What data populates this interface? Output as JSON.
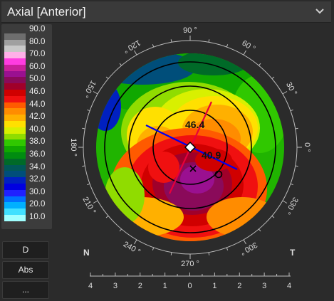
{
  "header": {
    "title": "Axial [Anterior]",
    "dropdown_icon": "chevron-down-icon"
  },
  "legend": {
    "items": [
      {
        "value": "90.0",
        "color": "#3c3c3c"
      },
      {
        "value": "",
        "color": "#6e6e6e"
      },
      {
        "value": "80.0",
        "color": "#a0a0a0"
      },
      {
        "value": "",
        "color": "#c8c8c8"
      },
      {
        "value": "70.0",
        "color": "#ffb0e8"
      },
      {
        "value": "",
        "color": "#ff3ce0"
      },
      {
        "value": "60.0",
        "color": "#c8209a"
      },
      {
        "value": "",
        "color": "#9a1090"
      },
      {
        "value": "50.0",
        "color": "#8a0a5a"
      },
      {
        "value": "",
        "color": "#a0002a"
      },
      {
        "value": "46.0",
        "color": "#d00000"
      },
      {
        "value": "",
        "color": "#f01010"
      },
      {
        "value": "44.0",
        "color": "#ff5a00"
      },
      {
        "value": "",
        "color": "#ff8c00"
      },
      {
        "value": "42.0",
        "color": "#ffb000"
      },
      {
        "value": "",
        "color": "#ffe000"
      },
      {
        "value": "40.0",
        "color": "#d8f000"
      },
      {
        "value": "",
        "color": "#90dc00"
      },
      {
        "value": "38.0",
        "color": "#30c800"
      },
      {
        "value": "",
        "color": "#10a800"
      },
      {
        "value": "36.0",
        "color": "#008c10"
      },
      {
        "value": "",
        "color": "#006a28"
      },
      {
        "value": "34.0",
        "color": "#005858"
      },
      {
        "value": "",
        "color": "#004e7a"
      },
      {
        "value": "32.0",
        "color": "#0020c0"
      },
      {
        "value": "",
        "color": "#0000e0"
      },
      {
        "value": "30.0",
        "color": "#2020ff"
      },
      {
        "value": "",
        "color": "#0070ff"
      },
      {
        "value": "20.0",
        "color": "#00b0ff"
      },
      {
        "value": "",
        "color": "#40e0ff"
      },
      {
        "value": "10.0",
        "color": "#a0ffff"
      }
    ]
  },
  "buttons": {
    "d": "D",
    "abs": "Abs",
    "more": "..."
  },
  "map": {
    "angles": [
      {
        "label": "0 °",
        "deg": 0
      },
      {
        "label": "30 °",
        "deg": 30
      },
      {
        "label": "60 °",
        "deg": 60
      },
      {
        "label": "90 °",
        "deg": 90
      },
      {
        "label": "120 °",
        "deg": 120
      },
      {
        "label": "150 °",
        "deg": 150
      },
      {
        "label": "180 °",
        "deg": 180
      },
      {
        "label": "210 °",
        "deg": 210
      },
      {
        "label": "240 °",
        "deg": 240
      },
      {
        "label": "270 °",
        "deg": 270
      },
      {
        "label": "300 °",
        "deg": 300
      },
      {
        "label": "330 °",
        "deg": 330
      }
    ],
    "steep_k": "46.4",
    "flat_k": "40.9",
    "left_side": "N",
    "right_side": "T",
    "scale_ticks": [
      "4",
      "3",
      "2",
      "1",
      "0",
      "1",
      "2",
      "3",
      "4"
    ]
  }
}
